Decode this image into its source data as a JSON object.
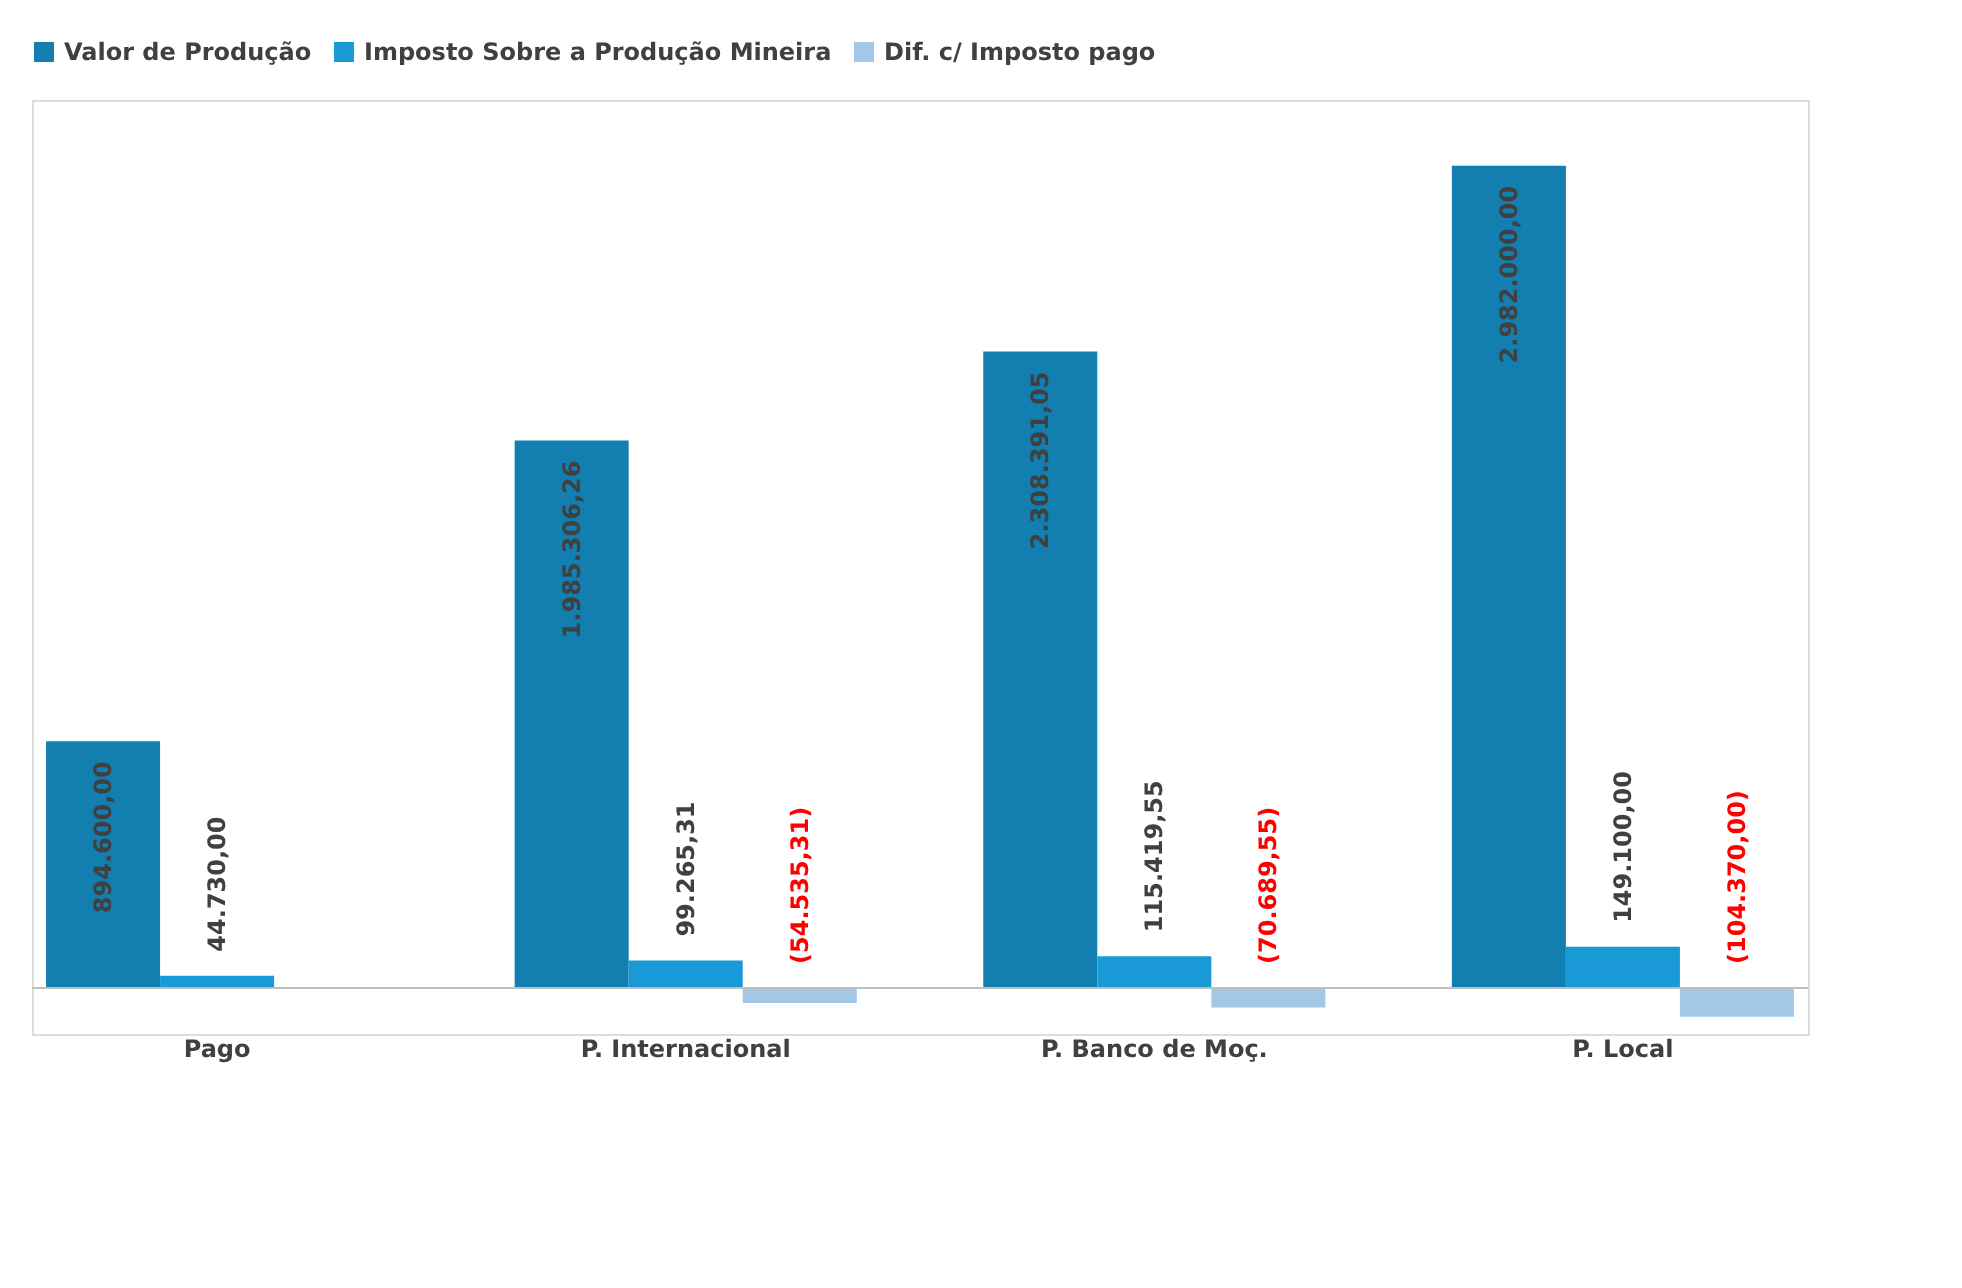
{
  "chart_data": {
    "type": "bar",
    "categories": [
      "Pago",
      "P. Internacional",
      "P. Banco de Moç.",
      "P. Local"
    ],
    "series": [
      {
        "name": "Valor de Produção",
        "color": "#127fb0",
        "values": [
          894600.0,
          1985306.26,
          2308391.05,
          2982000.0
        ],
        "value_labels": [
          "894.600,00",
          "1.985.306,26",
          "2.308.391,05",
          "2.982.000,00"
        ]
      },
      {
        "name": "Imposto Sobre a Produção Mineira",
        "color": "#199ad6",
        "values": [
          44730.0,
          99265.31,
          115419.55,
          149100.0
        ],
        "value_labels": [
          "44.730,00",
          "99.265,31",
          "115.419,55",
          "149.100,00"
        ]
      },
      {
        "name": "Dif. c/ Imposto pago",
        "color": "#a3c7e6",
        "values": [
          null,
          -54535.31,
          -70689.55,
          -104370.0
        ],
        "value_labels": [
          null,
          "(54.535,31)",
          "(70.689,55)",
          "(104.370,00)"
        ]
      }
    ],
    "legend": "top",
    "grid": false
  }
}
